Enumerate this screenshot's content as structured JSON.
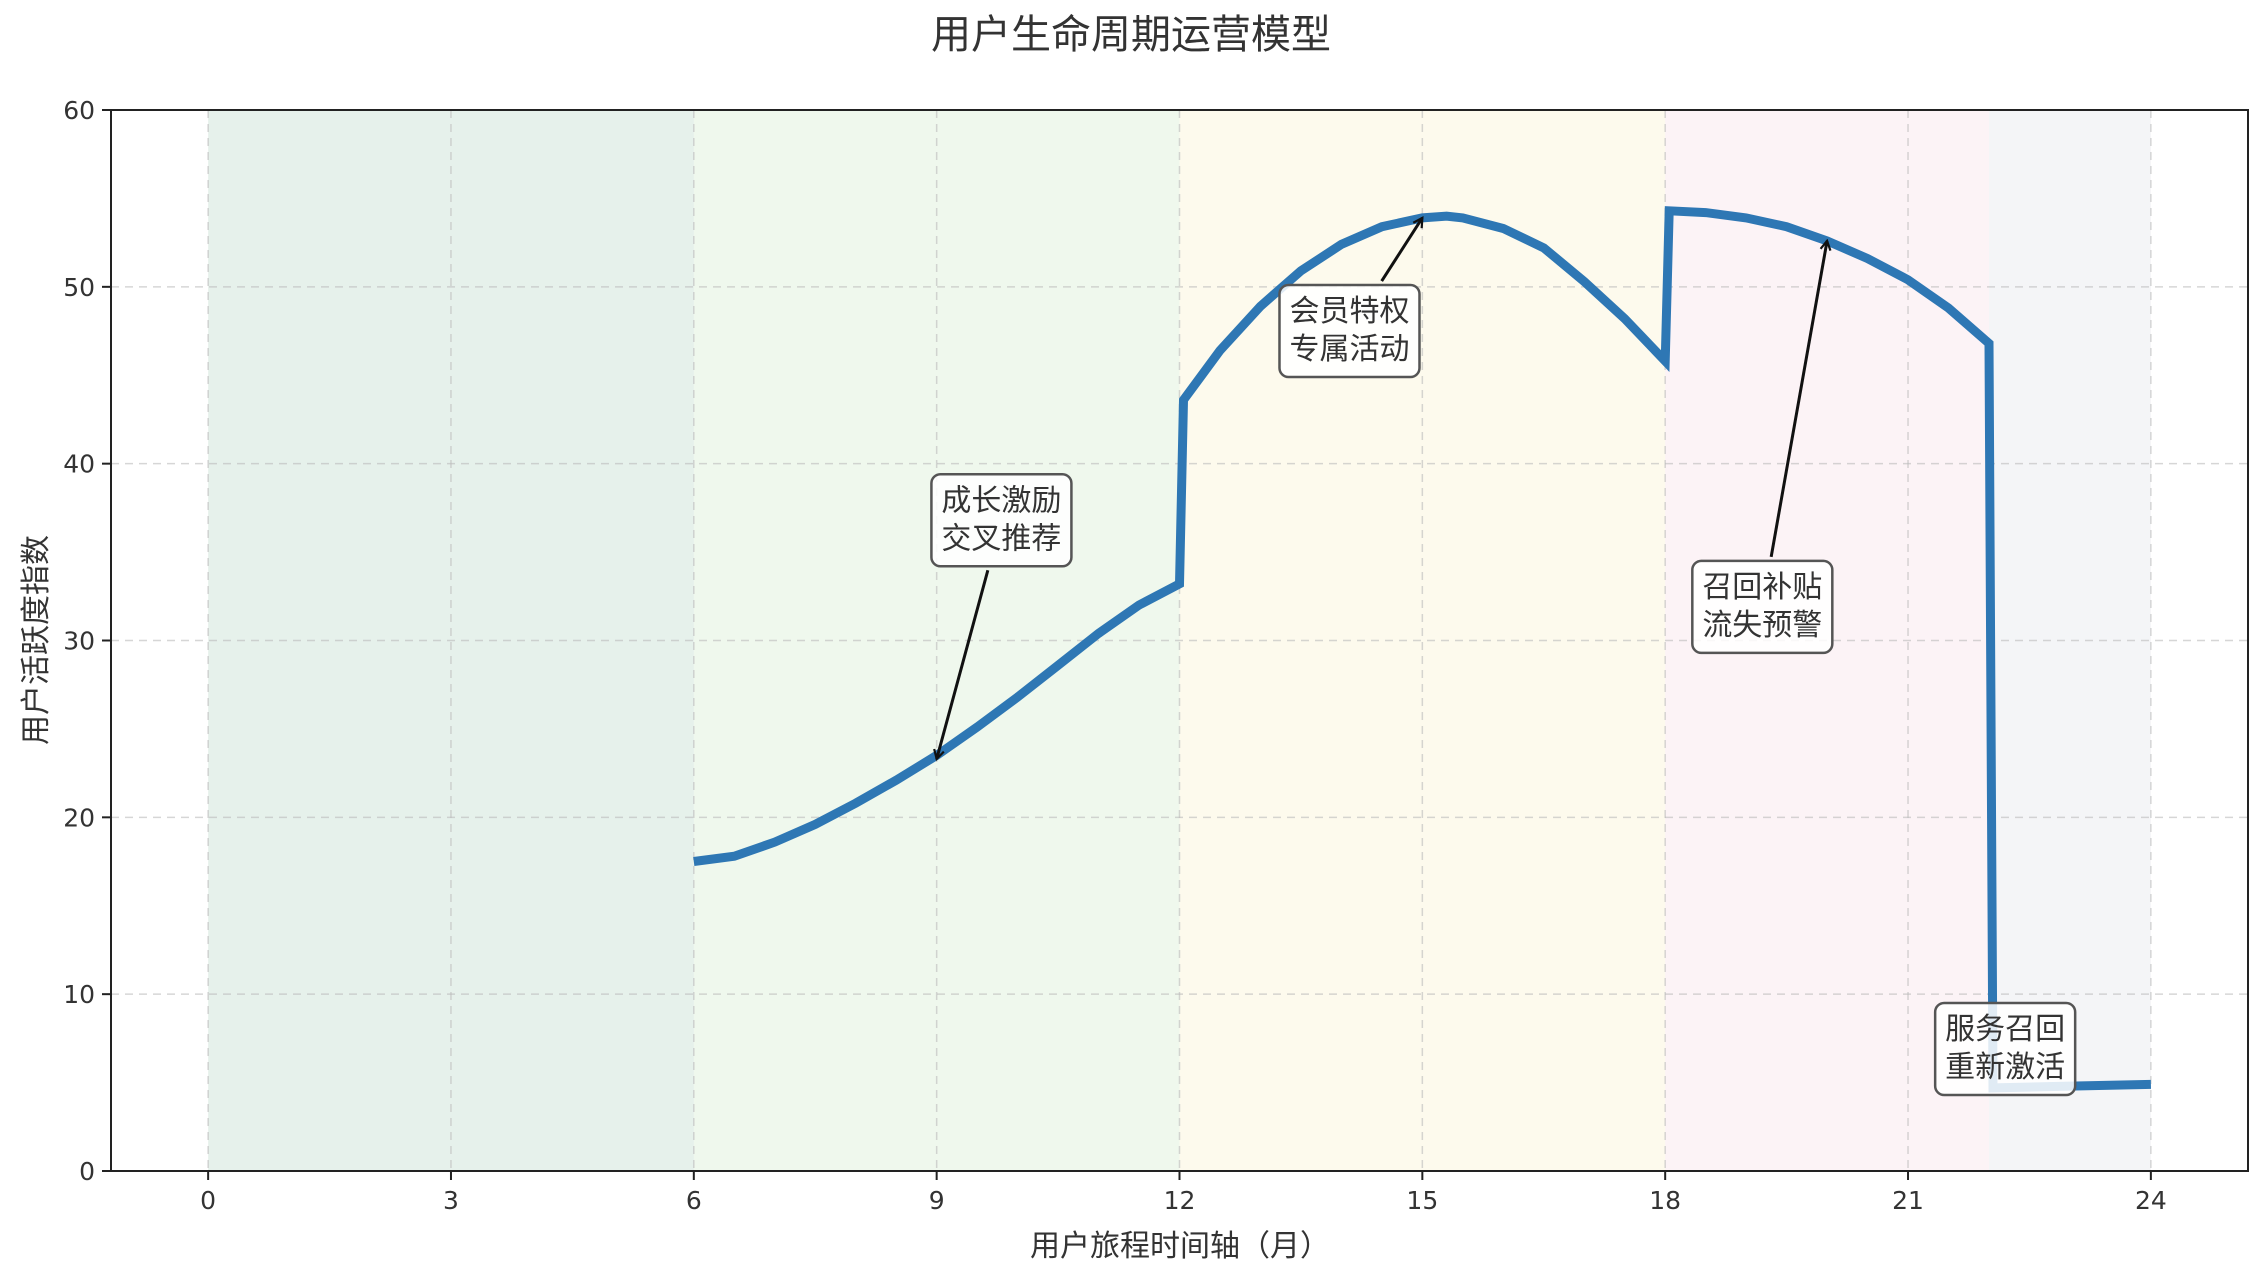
{
  "chart_data": {
    "type": "line",
    "title": "用户生命周期运营模型",
    "xlabel": "用户旅程时间轴（月）",
    "ylabel": "用户活跃度指数",
    "xlim": [
      -1.2,
      25.2
    ],
    "ylim": [
      0,
      60
    ],
    "x_ticks": [
      0,
      3,
      6,
      9,
      12,
      15,
      18,
      21,
      24
    ],
    "y_ticks": [
      0,
      10,
      20,
      30,
      40,
      50,
      60
    ],
    "grid": true,
    "phases": [
      {
        "start": 0,
        "end": 6,
        "color": "#2e8b57"
      },
      {
        "start": 6,
        "end": 12,
        "color": "#7cc36a"
      },
      {
        "start": 12,
        "end": 18,
        "color": "#f2d26b"
      },
      {
        "start": 18,
        "end": 22,
        "color": "#e6a0b4"
      },
      {
        "start": 22,
        "end": 24,
        "color": "#a7afbf"
      }
    ],
    "series": [
      {
        "color": "#2e77b4",
        "points": [
          [
            6,
            17.5
          ],
          [
            6.5,
            17.8
          ],
          [
            7,
            18.6
          ],
          [
            7.5,
            19.6
          ],
          [
            8,
            20.8
          ],
          [
            8.5,
            22.1
          ],
          [
            9,
            23.5
          ],
          [
            9.5,
            25.1
          ],
          [
            10,
            26.8
          ],
          [
            10.5,
            28.6
          ],
          [
            11,
            30.4
          ],
          [
            11.5,
            32.0
          ],
          [
            12,
            33.2
          ],
          [
            12.05,
            43.6
          ],
          [
            12.5,
            46.4
          ],
          [
            13,
            48.9
          ],
          [
            13.5,
            50.9
          ],
          [
            14,
            52.4
          ],
          [
            14.5,
            53.4
          ],
          [
            15,
            53.9
          ],
          [
            15.3,
            54.0
          ],
          [
            15.5,
            53.9
          ],
          [
            16,
            53.3
          ],
          [
            16.5,
            52.2
          ],
          [
            17,
            50.3
          ],
          [
            17.5,
            48.2
          ],
          [
            18,
            45.8
          ],
          [
            18.05,
            54.3
          ],
          [
            18.5,
            54.2
          ],
          [
            19,
            53.9
          ],
          [
            19.5,
            53.4
          ],
          [
            20,
            52.6
          ],
          [
            20.5,
            51.6
          ],
          [
            21,
            50.4
          ],
          [
            21.5,
            48.8
          ],
          [
            22,
            46.8
          ],
          [
            22.05,
            4.7
          ],
          [
            23,
            4.8
          ],
          [
            24,
            4.9
          ]
        ]
      }
    ],
    "annotations": [
      {
        "lines": [
          "成长激励",
          "交叉推荐"
        ],
        "label_x": 9.8,
        "label_y": 36.8,
        "arrow_x": 9.0,
        "arrow_y": 23.3
      },
      {
        "lines": [
          "会员特权",
          "专属活动"
        ],
        "label_x": 14.1,
        "label_y": 47.5,
        "arrow_x": 15.0,
        "arrow_y": 53.9
      },
      {
        "lines": [
          "召回补贴",
          "流失预警"
        ],
        "label_x": 19.2,
        "label_y": 31.9,
        "arrow_x": 20.0,
        "arrow_y": 52.6
      },
      {
        "lines": [
          "服务召回",
          "重新激活"
        ],
        "label_x": 22.2,
        "label_y": 6.9,
        "arrow_x": 23.0,
        "arrow_y": 4.8
      }
    ]
  }
}
